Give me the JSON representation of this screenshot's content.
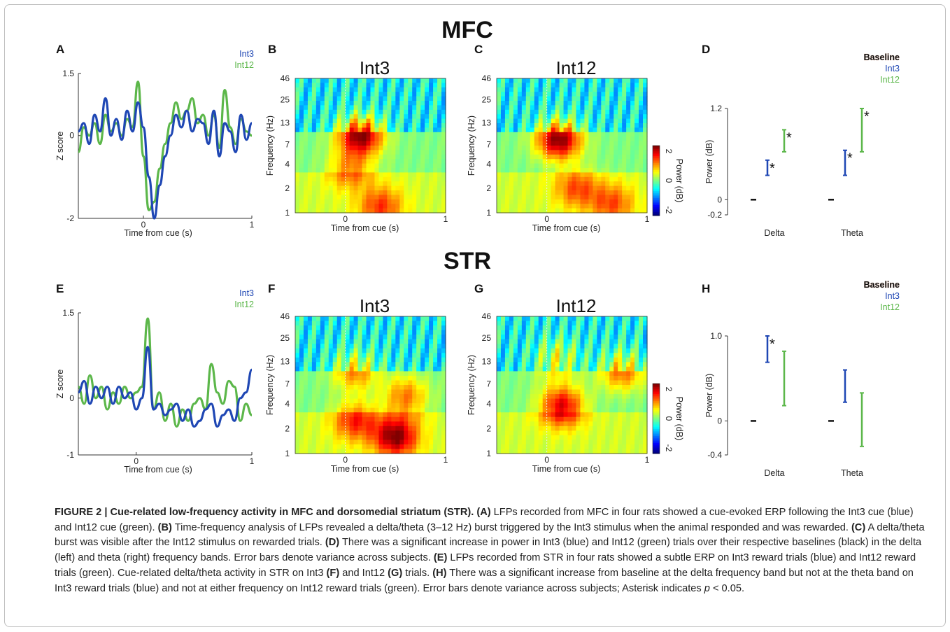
{
  "figure": {
    "sections": {
      "top": "MFC",
      "bottom": "STR"
    },
    "panel_letters": [
      "A",
      "B",
      "C",
      "D",
      "E",
      "F",
      "G",
      "H"
    ],
    "colors": {
      "int3": "#1f47b4",
      "int12": "#5cb74a",
      "baseline": "#111111"
    },
    "caption": {
      "title": "FIGURE 2 | Cue-related low-frequency activity in MFC and dorsomedial striatum (STR).",
      "parts": [
        {
          "b": "(A)",
          "t": " LFPs recorded from MFC in four rats showed a cue-evoked ERP following the Int3 cue (blue) and Int12 cue (green). "
        },
        {
          "b": "(B)",
          "t": " Time-frequency analysis of LFPs revealed a delta/theta (3–12 Hz) burst triggered by the Int3 stimulus when the animal responded and was rewarded. "
        },
        {
          "b": "(C)",
          "t": " A delta/theta burst was visible after the Int12 stimulus on rewarded trials. "
        },
        {
          "b": "(D)",
          "t": " There was a significant increase in power in Int3 (blue) and Int12 (green) trials over their respective baselines (black) in the delta (left) and theta (right) frequency bands. Error bars denote variance across subjects. "
        },
        {
          "b": "(E)",
          "t": " LFPs recorded from STR in four rats showed a subtle ERP on Int3 reward trials (blue) and Int12 reward trials (green). Cue-related delta/theta activity in STR on Int3 "
        },
        {
          "b": "(F)",
          "t": " and Int12 "
        },
        {
          "b": "(G)",
          "t": " trials. "
        },
        {
          "b": "(H)",
          "t": " There was a significant increase from baseline at the delta frequency band but not at the theta band on Int3 reward trials (blue) and not at either frequency on Int12 reward trials (green). Error bars denote variance across subjects; Asterisk indicates "
        },
        {
          "i": "p",
          "t": " < 0.05."
        }
      ]
    }
  },
  "chart_data": [
    {
      "panel": "A",
      "type": "line",
      "xlabel": "Time from cue (s)",
      "ylabel": "Z score",
      "xlim": [
        -0.6,
        1
      ],
      "ylim": [
        -2,
        1.5
      ],
      "xticks": [
        0,
        1
      ],
      "yticks": [
        1.5,
        0,
        -2
      ],
      "legend": [
        "Int3",
        "Int12"
      ],
      "series": [
        {
          "name": "Int3",
          "x": [
            -0.6,
            -0.55,
            -0.5,
            -0.45,
            -0.4,
            -0.35,
            -0.3,
            -0.25,
            -0.2,
            -0.15,
            -0.1,
            -0.05,
            0,
            0.05,
            0.1,
            0.15,
            0.2,
            0.25,
            0.3,
            0.35,
            0.4,
            0.45,
            0.5,
            0.55,
            0.6,
            0.65,
            0.7,
            0.75,
            0.8,
            0.85,
            0.9,
            0.95,
            1
          ],
          "y": [
            0.1,
            0.3,
            -0.2,
            0.5,
            0.1,
            0.9,
            0.0,
            0.4,
            -0.1,
            0.6,
            0.1,
            0.8,
            0.2,
            -1.0,
            -2.0,
            -1.2,
            -0.5,
            0.0,
            0.5,
            0.2,
            0.6,
            0.1,
            0.4,
            0.3,
            -0.2,
            0.6,
            -0.5,
            0.3,
            0.1,
            -0.4,
            0.5,
            -0.1,
            0.3
          ]
        },
        {
          "name": "Int12",
          "x": [
            -0.6,
            -0.55,
            -0.5,
            -0.45,
            -0.4,
            -0.35,
            -0.3,
            -0.25,
            -0.2,
            -0.15,
            -0.1,
            -0.05,
            0,
            0.05,
            0.1,
            0.15,
            0.2,
            0.25,
            0.3,
            0.35,
            0.4,
            0.45,
            0.5,
            0.55,
            0.6,
            0.65,
            0.7,
            0.75,
            0.8,
            0.85,
            0.9,
            0.95,
            1
          ],
          "y": [
            -0.4,
            0.2,
            0.0,
            0.3,
            -0.2,
            0.5,
            0.1,
            0.3,
            0.0,
            0.4,
            0.2,
            1.3,
            -0.5,
            -1.8,
            -1.6,
            -0.8,
            -0.2,
            0.3,
            0.8,
            0.4,
            0.6,
            0.9,
            0.3,
            0.5,
            0.0,
            0.5,
            -0.3,
            1.1,
            0.2,
            -0.2,
            0.4,
            0.1,
            0.0
          ]
        }
      ]
    },
    {
      "panel": "B",
      "type": "heatmap",
      "title": "Int3",
      "xlabel": "Time from cue (s)",
      "ylabel": "Frequency (Hz)",
      "xlim": [
        -0.5,
        1
      ],
      "xticks": [
        0,
        1
      ],
      "yticks": [
        1,
        2,
        4,
        7,
        13,
        25,
        46
      ],
      "blobs": [
        {
          "t": 0.15,
          "f": 9,
          "amp": 1.0
        },
        {
          "t": 0.05,
          "f": 3.5,
          "amp": 0.45
        },
        {
          "t": 0.35,
          "f": 1.2,
          "amp": 0.5
        }
      ]
    },
    {
      "panel": "C",
      "type": "heatmap",
      "title": "Int12",
      "xlabel": "Time from cue (s)",
      "ylabel": "Frequency (Hz)",
      "xlim": [
        -0.5,
        1
      ],
      "xticks": [
        0,
        1
      ],
      "yticks": [
        1,
        2,
        4,
        7,
        13,
        25,
        46
      ],
      "colorbar": {
        "label": "Power (dB)",
        "ticks": [
          2,
          0,
          -2
        ]
      },
      "blobs": [
        {
          "t": 0.12,
          "f": 8,
          "amp": 1.0
        },
        {
          "t": 0.3,
          "f": 2,
          "amp": 0.45
        },
        {
          "t": 0.65,
          "f": 1.3,
          "amp": 0.45
        }
      ]
    },
    {
      "panel": "D",
      "type": "errorbar",
      "ylabel": "Power (dB)",
      "categories": [
        "Delta",
        "Theta"
      ],
      "ylim": [
        -0.2,
        1.2
      ],
      "yticks": [
        1.2,
        0,
        -0.2
      ],
      "legend": [
        "Baseline",
        "Int3",
        "Int12"
      ],
      "series": [
        {
          "name": "Baseline",
          "values": [
            0,
            0
          ],
          "lo": [
            0,
            0
          ],
          "hi": [
            0,
            0
          ]
        },
        {
          "name": "Int3",
          "values": [
            0.41,
            0.45
          ],
          "lo": [
            0.32,
            0.32
          ],
          "hi": [
            0.52,
            0.65
          ],
          "sig": [
            true,
            true
          ]
        },
        {
          "name": "Int12",
          "values": [
            0.77,
            0.91
          ],
          "lo": [
            0.63,
            0.63
          ],
          "hi": [
            0.92,
            1.2
          ],
          "sig": [
            true,
            true
          ]
        }
      ]
    },
    {
      "panel": "E",
      "type": "line",
      "xlabel": "Time from cue (s)",
      "ylabel": "Z score",
      "xlim": [
        -0.5,
        1
      ],
      "ylim": [
        -1,
        1.5
      ],
      "xticks": [
        0,
        1
      ],
      "yticks": [
        1.5,
        0,
        -1
      ],
      "legend": [
        "Int3",
        "Int12"
      ],
      "series": [
        {
          "name": "Int3",
          "x": [
            -0.5,
            -0.45,
            -0.4,
            -0.35,
            -0.3,
            -0.25,
            -0.2,
            -0.15,
            -0.1,
            -0.05,
            0,
            0.05,
            0.1,
            0.15,
            0.2,
            0.25,
            0.3,
            0.35,
            0.4,
            0.45,
            0.5,
            0.55,
            0.6,
            0.65,
            0.7,
            0.75,
            0.8,
            0.85,
            0.9,
            0.95,
            1
          ],
          "y": [
            0.1,
            0.3,
            -0.1,
            0.2,
            0.0,
            0.2,
            -0.1,
            0.2,
            0.0,
            0.1,
            -0.2,
            0.0,
            0.9,
            -0.2,
            -0.1,
            -0.3,
            -0.2,
            -0.1,
            -0.4,
            -0.2,
            -0.5,
            -0.4,
            -0.2,
            -0.1,
            -0.5,
            -0.3,
            -0.2,
            -0.4,
            0.0,
            0.1,
            0.5
          ]
        },
        {
          "name": "Int12",
          "x": [
            -0.5,
            -0.45,
            -0.4,
            -0.35,
            -0.3,
            -0.25,
            -0.2,
            -0.15,
            -0.1,
            -0.05,
            0,
            0.05,
            0.1,
            0.15,
            0.2,
            0.25,
            0.3,
            0.35,
            0.4,
            0.45,
            0.5,
            0.55,
            0.6,
            0.65,
            0.7,
            0.75,
            0.8,
            0.85,
            0.9,
            0.95,
            1
          ],
          "y": [
            0.2,
            -0.1,
            0.4,
            0.0,
            0.2,
            -0.2,
            0.1,
            -0.1,
            0.2,
            0.0,
            0.1,
            0.2,
            1.4,
            -0.2,
            0.1,
            -0.4,
            -0.1,
            -0.5,
            -0.2,
            -0.4,
            -0.1,
            0.0,
            -0.2,
            0.6,
            0.1,
            -0.1,
            0.3,
            0.2,
            -0.4,
            -0.1,
            -0.3
          ]
        }
      ]
    },
    {
      "panel": "F",
      "type": "heatmap",
      "title": "Int3",
      "xlabel": "Time from cue (s)",
      "ylabel": "Frequency (Hz)",
      "xlim": [
        -0.5,
        1
      ],
      "xticks": [
        0,
        1
      ],
      "yticks": [
        1,
        2,
        4,
        7,
        13,
        25,
        46
      ],
      "blobs": [
        {
          "t": 0.5,
          "f": 1.6,
          "amp": 0.85
        },
        {
          "t": 0.1,
          "f": 2.5,
          "amp": 0.55
        },
        {
          "t": 0.1,
          "f": 10,
          "amp": 0.5
        },
        {
          "t": 0.6,
          "f": 5,
          "amp": 0.5
        }
      ]
    },
    {
      "panel": "G",
      "type": "heatmap",
      "title": "Int12",
      "xlabel": "Time from cue (s)",
      "ylabel": "Frequency (Hz)",
      "xlim": [
        -0.5,
        1
      ],
      "xticks": [
        0,
        1
      ],
      "yticks": [
        1,
        2,
        4,
        7,
        13,
        25,
        46
      ],
      "colorbar": {
        "label": "Power (dB)",
        "ticks": [
          2,
          0,
          -2
        ]
      },
      "blobs": [
        {
          "t": 0.15,
          "f": 3.8,
          "amp": 0.8
        },
        {
          "t": 0.75,
          "f": 10,
          "amp": 0.55
        },
        {
          "t": 0.1,
          "f": 14,
          "amp": 0.4
        }
      ]
    },
    {
      "panel": "H",
      "type": "errorbar",
      "ylabel": "Power (dB)",
      "categories": [
        "Delta",
        "Theta"
      ],
      "ylim": [
        -0.4,
        1.0
      ],
      "yticks": [
        1.0,
        0,
        -0.4
      ],
      "legend": [
        "Baseline",
        "Int3",
        "Int12"
      ],
      "series": [
        {
          "name": "Baseline",
          "values": [
            0,
            0
          ],
          "lo": [
            0,
            0
          ],
          "hi": [
            0,
            0
          ]
        },
        {
          "name": "Int3",
          "values": [
            0.85,
            0.41
          ],
          "lo": [
            0.69,
            0.22
          ],
          "hi": [
            1.0,
            0.6
          ],
          "sig": [
            true,
            false
          ]
        },
        {
          "name": "Int12",
          "values": [
            0.5,
            0.01
          ],
          "lo": [
            0.18,
            -0.3
          ],
          "hi": [
            0.82,
            0.33
          ],
          "sig": [
            false,
            false
          ]
        }
      ]
    }
  ]
}
